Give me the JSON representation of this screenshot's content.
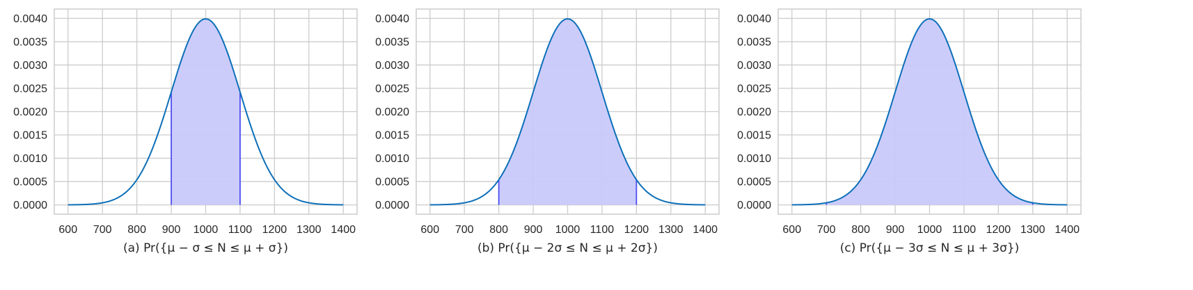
{
  "chart_data": [
    {
      "type": "area",
      "caption": "(a) Pr({μ − σ ≤ N ≤ μ + σ})",
      "x_ticks": [
        "600",
        "700",
        "800",
        "900",
        "1000",
        "1100",
        "1200",
        "1300",
        "1400"
      ],
      "y_ticks": [
        "0.0000",
        "0.0005",
        "0.0010",
        "0.0015",
        "0.0020",
        "0.0025",
        "0.0030",
        "0.0035",
        "0.0040"
      ],
      "xlim": [
        560,
        1440
      ],
      "ylim": [
        -0.0002,
        0.0042
      ],
      "grid": true,
      "curve": {
        "kind": "normal_pdf",
        "mu": 1000,
        "sigma": 100,
        "x_range": [
          600,
          1400
        ],
        "color": "#0c6fb8"
      },
      "shaded_region": [
        900,
        1100
      ],
      "fill_color": "#c9c9fb",
      "boundary_color": "#4d4df2"
    },
    {
      "type": "area",
      "caption": "(b) Pr({μ − 2σ ≤ N ≤ μ + 2σ})",
      "x_ticks": [
        "600",
        "700",
        "800",
        "900",
        "1000",
        "1100",
        "1200",
        "1300",
        "1400"
      ],
      "y_ticks": [
        "0.0000",
        "0.0005",
        "0.0010",
        "0.0015",
        "0.0020",
        "0.0025",
        "0.0030",
        "0.0035",
        "0.0040"
      ],
      "xlim": [
        560,
        1440
      ],
      "ylim": [
        -0.0002,
        0.0042
      ],
      "grid": true,
      "curve": {
        "kind": "normal_pdf",
        "mu": 1000,
        "sigma": 100,
        "x_range": [
          600,
          1400
        ],
        "color": "#0c6fb8"
      },
      "shaded_region": [
        800,
        1200
      ],
      "fill_color": "#c9c9fb",
      "boundary_color": "#4d4df2"
    },
    {
      "type": "area",
      "caption": "(c) Pr({μ − 3σ ≤ N ≤ μ + 3σ})",
      "x_ticks": [
        "600",
        "700",
        "800",
        "900",
        "1000",
        "1100",
        "1200",
        "1300",
        "1400"
      ],
      "y_ticks": [
        "0.0000",
        "0.0005",
        "0.0010",
        "0.0015",
        "0.0020",
        "0.0025",
        "0.0030",
        "0.0035",
        "0.0040"
      ],
      "xlim": [
        560,
        1440
      ],
      "ylim": [
        -0.0002,
        0.0042
      ],
      "grid": true,
      "curve": {
        "kind": "normal_pdf",
        "mu": 1000,
        "sigma": 100,
        "x_range": [
          600,
          1400
        ],
        "color": "#0c6fb8"
      },
      "shaded_region": [
        700,
        1300
      ],
      "fill_color": "#c9c9fb",
      "boundary_color": "#4d4df2"
    }
  ]
}
